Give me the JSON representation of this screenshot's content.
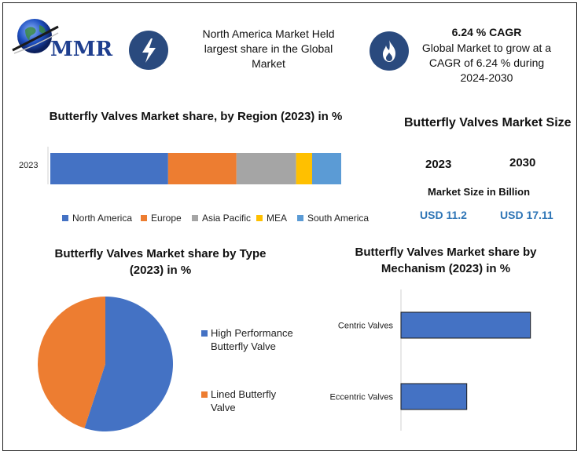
{
  "header": {
    "logo_text": "MMR",
    "callout_left": {
      "icon": "lightning-bolt-icon",
      "text": "North America Market Held largest share in the Global Market"
    },
    "callout_right": {
      "icon": "flame-icon",
      "headline": "6.24 % CAGR",
      "text": "Global Market to grow at a CAGR of 6.24 % during 2024-2030"
    }
  },
  "market_size": {
    "title": "Butterfly Valves Market Size",
    "year_a": "2023",
    "year_b": "2030",
    "label": "Market Size in Billion",
    "value_a": "USD 11.2",
    "value_b": "USD 17.11"
  },
  "colors": {
    "north_america": "#4472c4",
    "europe": "#ed7d31",
    "asia_pacific": "#a5a5a5",
    "mea": "#ffc000",
    "south_america": "#5b9bd5"
  },
  "chart_data": [
    {
      "type": "bar",
      "orientation": "horizontal-stacked",
      "title": "Butterfly Valves Market share, by Region (2023) in %",
      "categories": [
        "2023"
      ],
      "series": [
        {
          "name": "North America",
          "values": [
            40.5
          ],
          "color": "#4472c4"
        },
        {
          "name": "Europe",
          "values": [
            23.5
          ],
          "color": "#ed7d31"
        },
        {
          "name": "Asia Pacific",
          "values": [
            20.5
          ],
          "color": "#a5a5a5"
        },
        {
          "name": "MEA",
          "values": [
            5.5
          ],
          "color": "#ffc000"
        },
        {
          "name": "South America",
          "values": [
            10.0
          ],
          "color": "#5b9bd5"
        }
      ],
      "legend": "bottom"
    },
    {
      "type": "pie",
      "title": "Butterfly Valves Market share by Type (2023) in %",
      "labels": [
        "High Performance Butterfly Valve",
        "Lined Butterfly Valve"
      ],
      "values": [
        55,
        45
      ],
      "colors": [
        "#4472c4",
        "#ed7d31"
      ],
      "legend": "right"
    },
    {
      "type": "bar",
      "orientation": "horizontal",
      "title": "Butterfly Valves Market  share by Mechanism (2023) in %",
      "categories": [
        "Centric Valves",
        "Eccentric Valves"
      ],
      "values": [
        61,
        31
      ],
      "xlim": [
        0,
        100
      ],
      "color": "#4472c4"
    }
  ]
}
